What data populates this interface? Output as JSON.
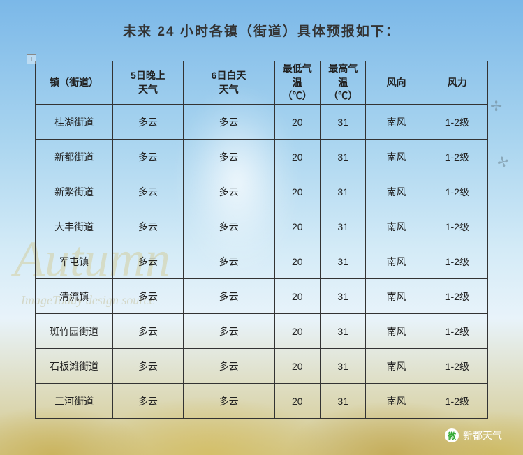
{
  "title": "未来 24 小时各镇（街道）具体预报如下：",
  "columns": {
    "town": "镇（街道）",
    "night": "5日晚上\n天气",
    "day": "6日白天\n天气",
    "low": "最低气\n温\n（℃）",
    "high": "最高气\n温\n（℃）",
    "wind_dir": "风向",
    "wind_force": "风力"
  },
  "rows": [
    {
      "town": "桂湖街道",
      "night": "多云",
      "day": "多云",
      "low": "20",
      "high": "31",
      "wind": "南风",
      "force": "1-2级"
    },
    {
      "town": "新都街道",
      "night": "多云",
      "day": "多云",
      "low": "20",
      "high": "31",
      "wind": "南风",
      "force": "1-2级"
    },
    {
      "town": "新繁街道",
      "night": "多云",
      "day": "多云",
      "low": "20",
      "high": "31",
      "wind": "南风",
      "force": "1-2级"
    },
    {
      "town": "大丰街道",
      "night": "多云",
      "day": "多云",
      "low": "20",
      "high": "31",
      "wind": "南风",
      "force": "1-2级"
    },
    {
      "town": "军屯镇",
      "night": "多云",
      "day": "多云",
      "low": "20",
      "high": "31",
      "wind": "南风",
      "force": "1-2级"
    },
    {
      "town": "清流镇",
      "night": "多云",
      "day": "多云",
      "low": "20",
      "high": "31",
      "wind": "南风",
      "force": "1-2级"
    },
    {
      "town": "斑竹园街道",
      "night": "多云",
      "day": "多云",
      "low": "20",
      "high": "31",
      "wind": "南风",
      "force": "1-2级"
    },
    {
      "town": "石板滩街道",
      "night": "多云",
      "day": "多云",
      "low": "20",
      "high": "31",
      "wind": "南风",
      "force": "1-2级"
    },
    {
      "town": "三河街道",
      "night": "多云",
      "day": "多云",
      "low": "20",
      "high": "31",
      "wind": "南风",
      "force": "1-2级"
    }
  ],
  "bg_script": "Autumn",
  "bg_script_sub": "ImageToday design source",
  "anchor_symbol": "+",
  "watermark": {
    "icon": "微",
    "text": "新都天气"
  }
}
